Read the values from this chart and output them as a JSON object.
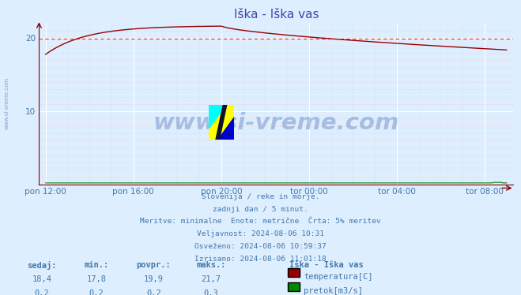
{
  "title": "Iška - Iška vas",
  "title_color": "#4444aa",
  "bg_color": "#ddeeff",
  "plot_bg_color": "#ddeeff",
  "temp_color": "#990000",
  "flow_color": "#008800",
  "avg_line_color": "#cc3333",
  "x_ticks_labels": [
    "pon 12:00",
    "pon 16:00",
    "pon 20:00",
    "tor 00:00",
    "tor 04:00",
    "tor 08:00"
  ],
  "x_ticks_pos": [
    0,
    4,
    8,
    12,
    16,
    20
  ],
  "ylim": [
    0,
    22
  ],
  "avg_temp": 19.9,
  "watermark": "www.si-vreme.com",
  "watermark_color": "#2255aa",
  "info_lines": [
    "Slovenija / reke in morje.",
    "zadnji dan / 5 minut.",
    "Meritve: minimalne  Enote: metrične  Črta: 5% meritev",
    "Veljavnost: 2024-08-06 10:31",
    "Osveženo: 2024-08-06 10:59:37",
    "Izrisano: 2024-08-06 11:01:18"
  ],
  "info_color": "#4477aa",
  "table_headers": [
    "sedaj:",
    "min.:",
    "povpr.:",
    "maks.:"
  ],
  "table_temp_vals": [
    "18,4",
    "17,8",
    "19,9",
    "21,7"
  ],
  "table_flow_vals": [
    "0,2",
    "0,2",
    "0,2",
    "0,3"
  ],
  "station_label": "Iška - Iška vas",
  "legend_temp": "temperatura[C]",
  "legend_flow": "pretok[m3/s]",
  "sidebar_text": "www.si-vreme.com",
  "sidebar_color": "#6688bb",
  "major_grid_color": "#ffffff",
  "minor_grid_color": "#ffbbbb",
  "axis_color": "#880000"
}
